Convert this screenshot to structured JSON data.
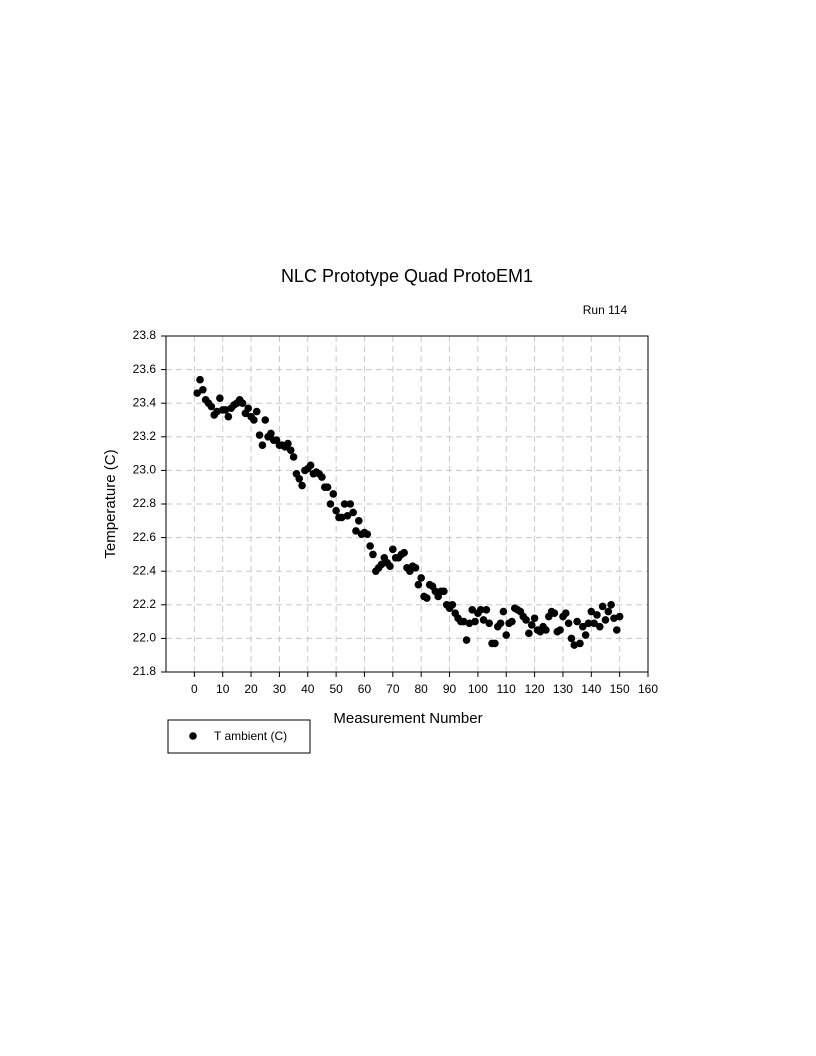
{
  "chart_data": {
    "type": "scatter",
    "title": "NLC Prototype Quad ProtoEM1",
    "subtitle": "Run 114",
    "x_label": "Measurement Number",
    "y_label": "Temperature (C)",
    "xlim": [
      -10,
      160
    ],
    "ylim": [
      21.8,
      23.8
    ],
    "xticks": [
      0,
      10,
      20,
      30,
      40,
      50,
      60,
      70,
      80,
      90,
      100,
      110,
      120,
      130,
      140,
      150,
      160
    ],
    "yticks": [
      21.8,
      {
        "value": 22,
        "label": "22.0"
      },
      22.2,
      22.4,
      22.6,
      22.8,
      {
        "value": 23,
        "label": "23.0"
      },
      23.2,
      23.4,
      23.6,
      23.8
    ],
    "grid": true,
    "legend": "bottom-left",
    "series": [
      {
        "name": "T ambient (C)",
        "color": "#000000",
        "x": [
          1,
          2,
          3,
          4,
          5,
          6,
          7,
          8,
          9,
          10,
          11,
          12,
          13,
          14,
          15,
          16,
          17,
          18,
          19,
          20,
          21,
          22,
          23,
          24,
          25,
          26,
          27,
          28,
          29,
          30,
          31,
          32,
          33,
          34,
          35,
          36,
          37,
          38,
          39,
          40,
          41,
          42,
          43,
          44,
          45,
          46,
          47,
          48,
          49,
          50,
          51,
          52,
          53,
          54,
          55,
          56,
          57,
          58,
          59,
          60,
          61,
          62,
          63,
          64,
          65,
          66,
          67,
          68,
          69,
          70,
          71,
          72,
          73,
          74,
          75,
          76,
          77,
          78,
          79,
          80,
          81,
          82,
          83,
          84,
          85,
          86,
          87,
          88,
          89,
          90,
          91,
          92,
          93,
          94,
          95,
          96,
          97,
          98,
          99,
          100,
          101,
          102,
          103,
          104,
          105,
          106,
          107,
          108,
          109,
          110,
          111,
          112,
          113,
          114,
          115,
          116,
          117,
          118,
          119,
          120,
          121,
          122,
          123,
          124,
          125,
          126,
          127,
          128,
          129,
          130,
          131,
          132,
          133,
          134,
          135,
          136,
          137,
          138,
          139,
          140,
          141,
          142,
          143,
          144,
          145,
          146,
          147,
          148,
          149,
          150
        ],
        "values": [
          23.46,
          23.54,
          23.48,
          23.42,
          23.4,
          23.38,
          23.33,
          23.35,
          23.43,
          23.36,
          23.36,
          23.32,
          23.37,
          23.39,
          23.4,
          23.42,
          23.4,
          23.34,
          23.37,
          23.32,
          23.3,
          23.35,
          23.21,
          23.15,
          23.3,
          23.2,
          23.22,
          23.18,
          23.18,
          23.15,
          23.15,
          23.14,
          23.16,
          23.12,
          23.08,
          22.98,
          22.95,
          22.91,
          23.0,
          23.01,
          23.03,
          22.98,
          22.99,
          22.98,
          22.96,
          22.9,
          22.9,
          22.8,
          22.86,
          22.76,
          22.72,
          22.72,
          22.8,
          22.73,
          22.8,
          22.75,
          22.64,
          22.7,
          22.62,
          22.63,
          22.62,
          22.55,
          22.5,
          22.4,
          22.42,
          22.44,
          22.48,
          22.45,
          22.43,
          22.53,
          22.48,
          22.48,
          22.5,
          22.51,
          22.42,
          22.4,
          22.43,
          22.42,
          22.32,
          22.36,
          22.25,
          22.24,
          22.32,
          22.31,
          22.28,
          22.25,
          22.28,
          22.28,
          22.2,
          22.18,
          22.2,
          22.15,
          22.12,
          22.1,
          22.1,
          21.99,
          22.09,
          22.17,
          22.1,
          22.15,
          22.17,
          22.11,
          22.17,
          22.09,
          21.97,
          21.97,
          22.07,
          22.09,
          22.16,
          22.02,
          22.09,
          22.1,
          22.18,
          22.17,
          22.16,
          22.13,
          22.11,
          22.03,
          22.08,
          22.12,
          22.05,
          22.04,
          22.07,
          22.05,
          22.13,
          22.16,
          22.15,
          22.04,
          22.05,
          22.13,
          22.15,
          22.09,
          22.0,
          21.96,
          22.1,
          21.97,
          22.07,
          22.02,
          22.09,
          22.16,
          22.09,
          22.14,
          22.07,
          22.19,
          22.11,
          22.16,
          22.2,
          22.12,
          22.05,
          22.13
        ]
      }
    ]
  }
}
